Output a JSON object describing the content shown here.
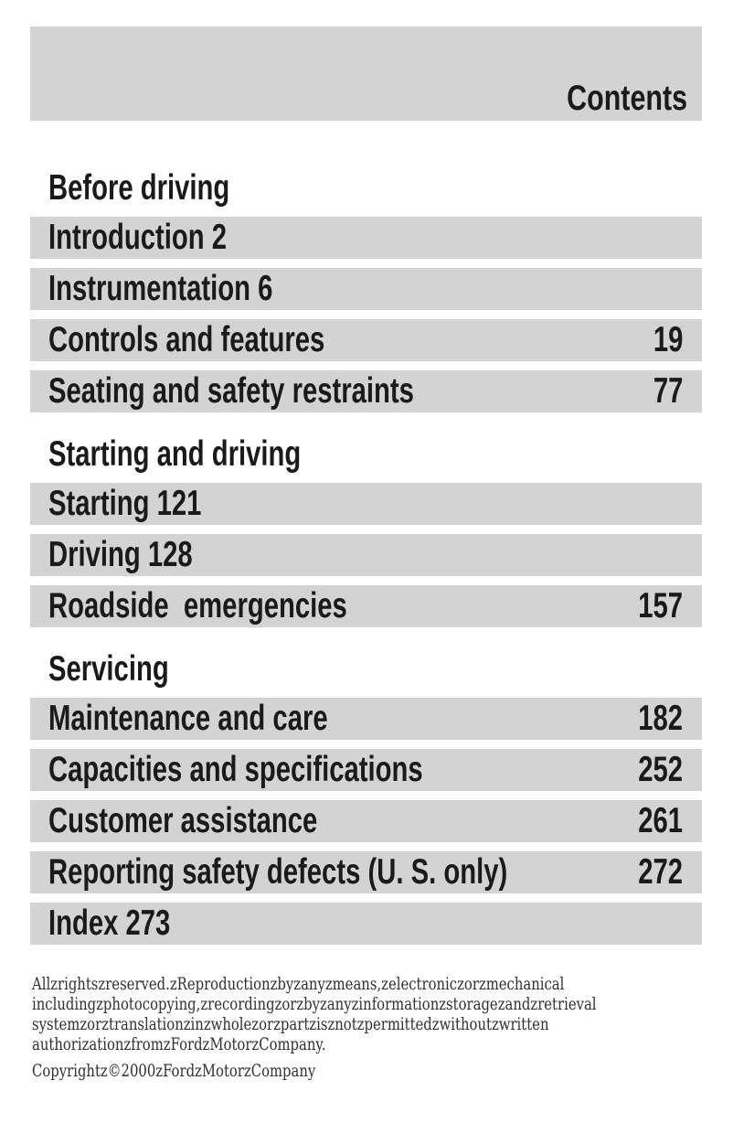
{
  "document": {
    "header_title": "Contents",
    "colors": {
      "bar_gray": "#d3d3d3",
      "text": "#1a1a1a",
      "page_background": "#ffffff"
    }
  },
  "sections": [
    {
      "heading": "Before driving",
      "rows": [
        {
          "label": "Introduction 2",
          "page": ""
        },
        {
          "label": "Instrumentation 6",
          "page": ""
        },
        {
          "label": "Controls and features",
          "page": "19"
        },
        {
          "label": "Seating and safety restraints",
          "page": "77"
        }
      ]
    },
    {
      "heading": "Starting and driving",
      "rows": [
        {
          "label": "Starting 121",
          "page": ""
        },
        {
          "label": "Driving 128",
          "page": ""
        },
        {
          "label": "Roadside  emergencies",
          "page": "157"
        }
      ]
    },
    {
      "heading": "Servicing",
      "rows": [
        {
          "label": "Maintenance and care",
          "page": "182"
        },
        {
          "label": "Capacities and specifications",
          "page": "252"
        },
        {
          "label": "Customer assistance",
          "page": "261"
        },
        {
          "label": "Reporting safety defects (U. S. only)",
          "page": "272"
        },
        {
          "label": "Index 273",
          "page": ""
        }
      ]
    }
  ],
  "footer": {
    "rights_lines": [
      "Allzrightszreserved.zReproductionzbyzanyzmeans,zelectroniczorzmechanical",
      "includingzphotocopying,zrecordingzorzbyzanyzinformationzstoragezandzretrieval",
      "systemzorztranslationzinzwholezorzpartzisznotzpermittedzwithoutzwritten",
      "authorizationzfromzFordzMotorzCompany."
    ],
    "copyright": "Copyrightz©2000zFordzMotorzCompany"
  }
}
